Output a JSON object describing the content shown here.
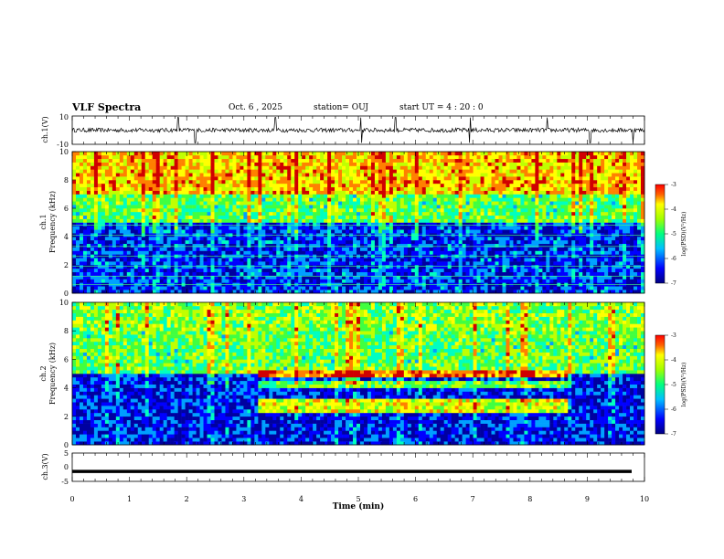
{
  "header": {
    "title": "VLF Spectra",
    "date": "Oct. 6 , 2025",
    "station": "station= OUJ",
    "start": "start UT =  4 : 20 : 0"
  },
  "chart_data": [
    {
      "type": "line",
      "panel": "ch1-waveform",
      "ylabel": "ch.1(V)",
      "ylim": [
        -10,
        10
      ],
      "yticks": [
        "10",
        "-10"
      ],
      "baseline_v": 0,
      "noise_amplitude_v": 1.5,
      "spike_times_min": [
        1.85,
        2.15,
        3.55,
        5.05,
        5.65,
        6.95,
        8.3,
        9.05,
        9.8
      ]
    },
    {
      "type": "heatmap",
      "panel": "ch1-spectrogram",
      "title": "ch.1",
      "ylabel": "Frequency (kHz)",
      "xlim": [
        0,
        10
      ],
      "ylim": [
        0,
        10
      ],
      "yticks": [
        "0",
        "2",
        "4",
        "6",
        "8",
        "10"
      ],
      "colorbar": {
        "label": "log(PSD)(V²/Hz)",
        "range": [
          -7,
          -3
        ],
        "ticks": [
          "-3",
          "-4",
          "-5",
          "-6",
          "-7"
        ]
      },
      "band_levels": [
        {
          "fmin": 0,
          "fmax": 5,
          "log_psd": -6.3
        },
        {
          "fmin": 5,
          "fmax": 7,
          "log_psd": -5.0
        },
        {
          "fmin": 7,
          "fmax": 10,
          "log_psd": -4.0
        }
      ],
      "horizontal_lines_khz": [
        0.6,
        1.2,
        1.9,
        2.6,
        3.3,
        4.1,
        4.8
      ]
    },
    {
      "type": "heatmap",
      "panel": "ch2-spectrogram",
      "title": "ch.2",
      "ylabel": "Frequency (kHz)",
      "xlim": [
        0,
        10
      ],
      "ylim": [
        0,
        10
      ],
      "yticks": [
        "0",
        "2",
        "4",
        "6",
        "8",
        "10"
      ],
      "colorbar": {
        "label": "log(PSD)(V²/Hz)",
        "range": [
          -7,
          -3
        ],
        "ticks": [
          "-3",
          "-4",
          "-5",
          "-6",
          "-7"
        ]
      },
      "band_levels": [
        {
          "fmin": 0,
          "fmax": 5,
          "log_psd": -6.4
        },
        {
          "fmin": 5,
          "fmax": 8,
          "log_psd": -5.0
        },
        {
          "fmin": 8,
          "fmax": 10,
          "log_psd": -4.8
        }
      ],
      "emission_bands": [
        {
          "t_start_min": 3.2,
          "t_end_min": 8.6,
          "fmin_khz": 4.7,
          "fmax_khz": 5.2,
          "log_psd": -3.6
        },
        {
          "t_start_min": 3.2,
          "t_end_min": 8.6,
          "fmin_khz": 3.8,
          "fmax_khz": 4.4,
          "log_psd": -5.0
        },
        {
          "t_start_min": 3.2,
          "t_end_min": 8.6,
          "fmin_khz": 2.2,
          "fmax_khz": 3.1,
          "log_psd": -4.4
        }
      ]
    },
    {
      "type": "line",
      "panel": "ch3-waveform",
      "ylabel": "ch.3(V)",
      "ylim": [
        -5,
        5
      ],
      "yticks": [
        "5",
        "0",
        "-5"
      ],
      "value_v": -1.5
    }
  ],
  "xaxis": {
    "label": "Time (min)",
    "xlim": [
      0,
      10
    ],
    "ticks": [
      "0",
      "1",
      "2",
      "3",
      "4",
      "5",
      "6",
      "7",
      "8",
      "9",
      "10"
    ]
  },
  "colors": {
    "c1": "#0000a0",
    "c2": "#0000ff",
    "c3": "#00a0ff",
    "c4": "#00ffc0",
    "c5": "#40ff40",
    "c6": "#c0ff00",
    "c7": "#ffff00",
    "c8": "#ff8000",
    "c9": "#d00000"
  }
}
